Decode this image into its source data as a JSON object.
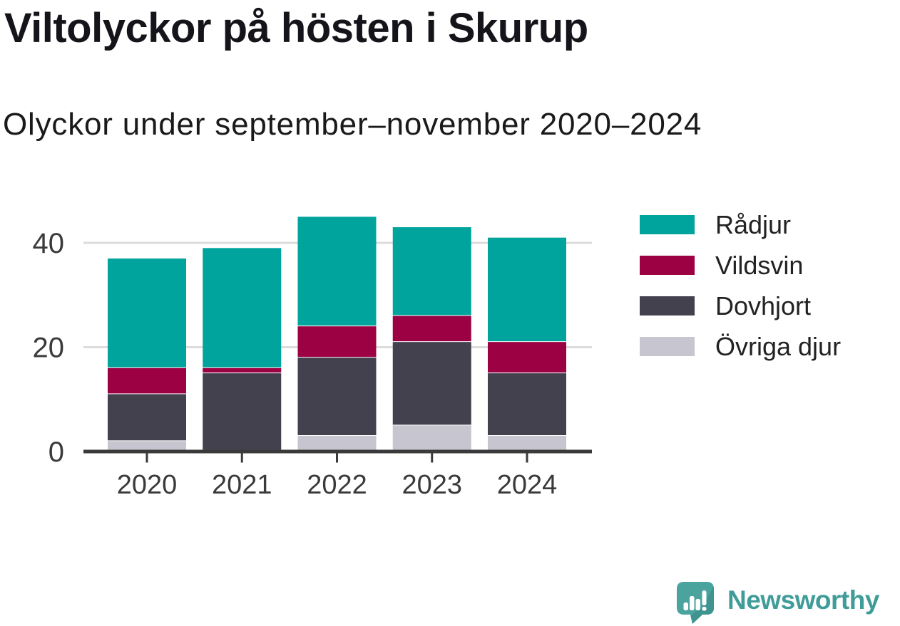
{
  "chart_data": {
    "type": "bar",
    "stacked": true,
    "title": "Viltolyckor på hösten i Skurup",
    "subtitle": "Olyckor under september–november 2020–2024",
    "categories": [
      "2020",
      "2021",
      "2022",
      "2023",
      "2024"
    ],
    "series": [
      {
        "name": "Rådjur",
        "color": "#00a49d",
        "values": [
          21,
          23,
          21,
          17,
          20
        ]
      },
      {
        "name": "Vildsvin",
        "color": "#9c0243",
        "values": [
          5,
          1,
          6,
          5,
          6
        ]
      },
      {
        "name": "Dovhjort",
        "color": "#44414e",
        "values": [
          9,
          15,
          15,
          16,
          12
        ]
      },
      {
        "name": "Övriga djur",
        "color": "#c7c5cf",
        "values": [
          2,
          0,
          3,
          5,
          3
        ]
      }
    ],
    "stack_order_bottom_to_top": [
      "Övriga djur",
      "Dovhjort",
      "Vildsvin",
      "Rådjur"
    ],
    "totals": [
      37,
      39,
      45,
      43,
      41
    ],
    "xlabel": "",
    "ylabel": "",
    "yticks": [
      0,
      20,
      40
    ],
    "ylim": [
      0,
      48
    ],
    "grid": true,
    "legend_position": "right",
    "grid_color": "#dcdcdc",
    "axis_color": "#3a3a3a",
    "tick_label_color": "#3a3a3a"
  },
  "branding": {
    "name": "Newsworthy",
    "logo_icon": "speech-bubble-bar-chart-icon",
    "text_color": "#3f9c98",
    "bubble_color": "#4ba39e",
    "bubble_shade_color": "#3f948f",
    "bars_color": "#ffffff"
  }
}
